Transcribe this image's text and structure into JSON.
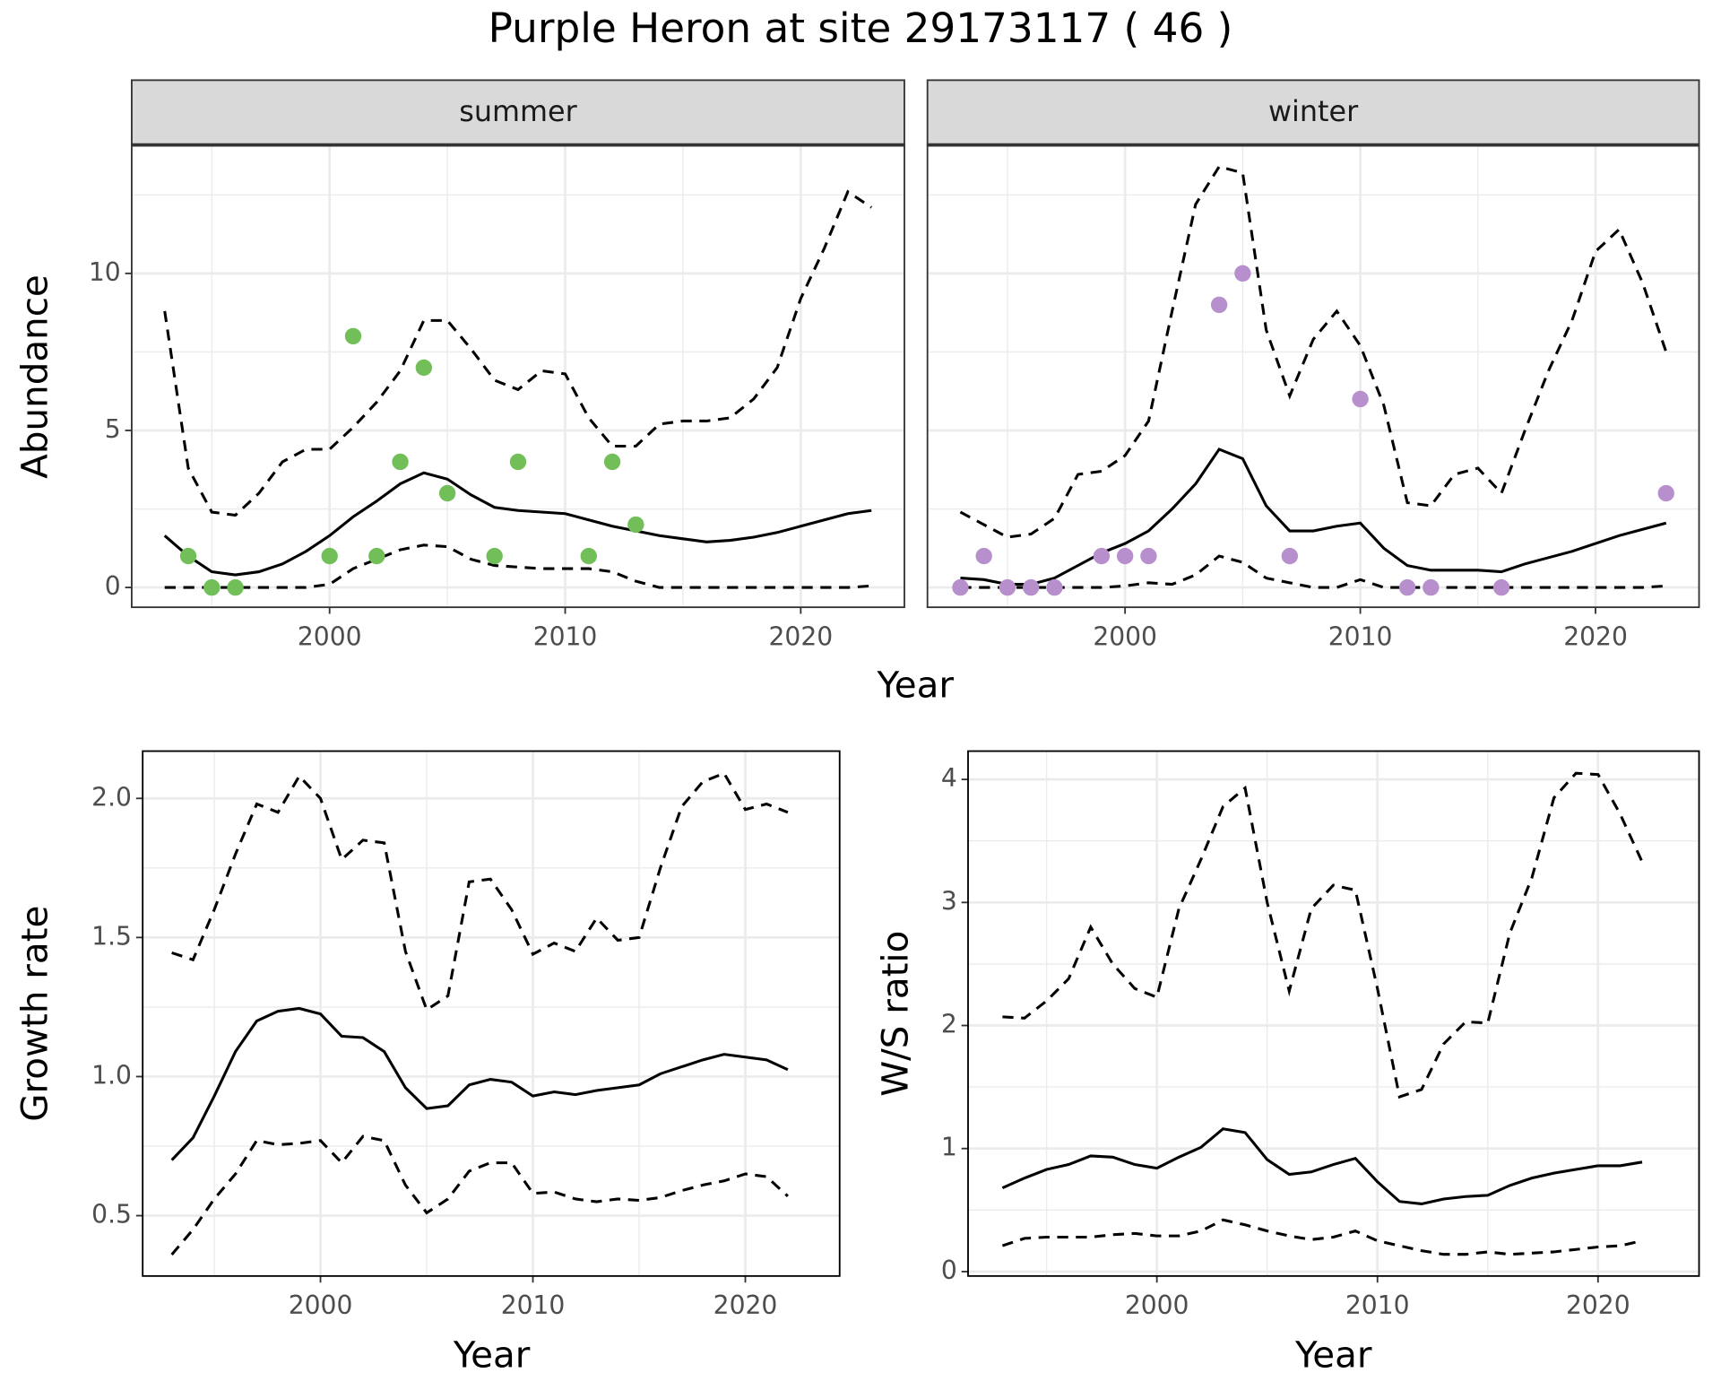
{
  "title": "Purple Heron at site 29173117 ( 46 )",
  "chart_data": [
    {
      "type": "line",
      "subtitle": "summer",
      "x_label": "Year",
      "y_label": "Abundance",
      "xlim": [
        1991.6,
        2024.4
      ],
      "ylim": [
        -0.63,
        14.09
      ],
      "xticks": [
        2000,
        2010,
        2020
      ],
      "yticks": [
        0,
        5,
        10
      ],
      "x_minor_ticks": [
        1995,
        2005,
        2015
      ],
      "y_minor_ticks": [
        2.5,
        7.5,
        12.5
      ],
      "grid": true,
      "show_ytick_labels": true,
      "x": [
        1993,
        1994,
        1995,
        1996,
        1997,
        1998,
        1999,
        2000,
        2001,
        2002,
        2003,
        2004,
        2005,
        2006,
        2007,
        2008,
        2009,
        2010,
        2011,
        2012,
        2013,
        2014,
        2015,
        2016,
        2017,
        2018,
        2019,
        2020,
        2021,
        2022,
        2023
      ],
      "series": [
        {
          "color": "#000000",
          "linestyle": "solid",
          "values": [
            1.65,
            1.0,
            0.5,
            0.4,
            0.5,
            0.75,
            1.15,
            1.65,
            2.25,
            2.75,
            3.3,
            3.65,
            3.45,
            2.95,
            2.55,
            2.45,
            2.4,
            2.35,
            2.15,
            1.95,
            1.8,
            1.65,
            1.55,
            1.45,
            1.5,
            1.6,
            1.75,
            1.95,
            2.15,
            2.35,
            2.45
          ]
        },
        {
          "color": "#000000",
          "linestyle": "dashed",
          "values": [
            8.8,
            3.8,
            2.4,
            2.3,
            3.0,
            4.0,
            4.4,
            4.4,
            5.1,
            5.9,
            6.9,
            8.5,
            8.5,
            7.6,
            6.6,
            6.3,
            6.9,
            6.8,
            5.4,
            4.5,
            4.5,
            5.2,
            5.3,
            5.3,
            5.4,
            6.0,
            7.0,
            9.2,
            10.8,
            12.6,
            12.1
          ]
        },
        {
          "color": "#000000",
          "linestyle": "dashed",
          "values": [
            0,
            0,
            0,
            0,
            0,
            0,
            0,
            0.1,
            0.6,
            0.9,
            1.2,
            1.35,
            1.3,
            0.9,
            0.7,
            0.65,
            0.6,
            0.6,
            0.6,
            0.5,
            0.2,
            0,
            0,
            0,
            0,
            0,
            0,
            0,
            0,
            0,
            0.05
          ]
        }
      ],
      "points": {
        "color": "#72bf5a",
        "x": [
          1994,
          1995,
          1996,
          2000,
          2001,
          2002,
          2003,
          2004,
          2005,
          2007,
          2008,
          2011,
          2012,
          2013
        ],
        "values": [
          1,
          0,
          0,
          1,
          8,
          1,
          4,
          7,
          3,
          1,
          4,
          1,
          4,
          2
        ]
      }
    },
    {
      "type": "line",
      "subtitle": "winter",
      "xlim": [
        1991.6,
        2024.4
      ],
      "ylim": [
        -0.63,
        14.09
      ],
      "xticks": [
        2000,
        2010,
        2020
      ],
      "yticks": [
        0,
        5,
        10
      ],
      "x_minor_ticks": [
        1995,
        2005,
        2015
      ],
      "y_minor_ticks": [
        2.5,
        7.5,
        12.5
      ],
      "grid": true,
      "show_ytick_labels": false,
      "x": [
        1993,
        1994,
        1995,
        1996,
        1997,
        1998,
        1999,
        2000,
        2001,
        2002,
        2003,
        2004,
        2005,
        2006,
        2007,
        2008,
        2009,
        2010,
        2011,
        2012,
        2013,
        2014,
        2015,
        2016,
        2017,
        2018,
        2019,
        2020,
        2021,
        2022,
        2023
      ],
      "series": [
        {
          "color": "#000000",
          "linestyle": "solid",
          "values": [
            0.3,
            0.25,
            0.1,
            0.1,
            0.3,
            0.7,
            1.1,
            1.4,
            1.8,
            2.5,
            3.3,
            4.4,
            4.1,
            2.6,
            1.8,
            1.8,
            1.95,
            2.05,
            1.25,
            0.7,
            0.55,
            0.55,
            0.55,
            0.5,
            0.75,
            0.95,
            1.15,
            1.4,
            1.65,
            1.85,
            2.05
          ]
        },
        {
          "color": "#000000",
          "linestyle": "dashed",
          "values": [
            2.4,
            2.0,
            1.6,
            1.7,
            2.2,
            3.6,
            3.7,
            4.2,
            5.3,
            8.8,
            12.2,
            13.4,
            13.2,
            8.2,
            6.1,
            7.9,
            8.8,
            7.7,
            5.8,
            2.7,
            2.6,
            3.6,
            3.8,
            3.0,
            5.0,
            6.9,
            8.5,
            10.7,
            11.4,
            9.7,
            7.5
          ]
        },
        {
          "color": "#000000",
          "linestyle": "dashed",
          "values": [
            0,
            0,
            0,
            0,
            0,
            0,
            0,
            0.05,
            0.15,
            0.1,
            0.4,
            1.0,
            0.8,
            0.3,
            0.15,
            0,
            0,
            0.25,
            0,
            0,
            0,
            0,
            0,
            0,
            0,
            0,
            0,
            0,
            0,
            0,
            0.05
          ]
        }
      ],
      "points": {
        "color": "#b68fcc",
        "x": [
          1993,
          1994,
          1995,
          1996,
          1997,
          1999,
          2000,
          2001,
          2004,
          2005,
          2007,
          2010,
          2012,
          2013,
          2016,
          2023
        ],
        "values": [
          0,
          1,
          0,
          0,
          0,
          1,
          1,
          1,
          9,
          10,
          1,
          6,
          0,
          0,
          0,
          3
        ]
      }
    },
    {
      "type": "line",
      "x_label": "Year",
      "y_label": "Growth rate",
      "xlim": [
        1991.63,
        2024.44
      ],
      "ylim": [
        0.283,
        2.17
      ],
      "xticks": [
        2000,
        2010,
        2020
      ],
      "yticks": [
        0.5,
        {
          "value": 1,
          "label": "1.0"
        },
        1.5,
        {
          "value": 2,
          "label": "2.0"
        }
      ],
      "x_minor_ticks": [
        1995,
        2005,
        2015
      ],
      "y_minor_ticks": [
        0.75,
        1.25,
        1.75
      ],
      "grid": true,
      "show_ytick_labels": true,
      "x": [
        1993,
        1994,
        1995,
        1996,
        1997,
        1998,
        1999,
        2000,
        2001,
        2002,
        2003,
        2004,
        2005,
        2006,
        2007,
        2008,
        2009,
        2010,
        2011,
        2012,
        2013,
        2014,
        2015,
        2016,
        2017,
        2018,
        2019,
        2020,
        2021,
        2022
      ],
      "series": [
        {
          "color": "#000000",
          "linestyle": "solid",
          "values": [
            0.7,
            0.78,
            0.93,
            1.09,
            1.2,
            1.235,
            1.245,
            1.225,
            1.145,
            1.14,
            1.09,
            0.96,
            0.885,
            0.895,
            0.97,
            0.99,
            0.98,
            0.93,
            0.945,
            0.935,
            0.95,
            0.96,
            0.97,
            1.01,
            1.035,
            1.06,
            1.08,
            1.07,
            1.06,
            1.025
          ]
        },
        {
          "color": "#000000",
          "linestyle": "dashed",
          "values": [
            1.445,
            1.42,
            1.6,
            1.8,
            1.98,
            1.95,
            2.08,
            2.0,
            1.78,
            1.85,
            1.84,
            1.45,
            1.24,
            1.29,
            1.7,
            1.71,
            1.6,
            1.44,
            1.48,
            1.45,
            1.57,
            1.49,
            1.5,
            1.75,
            1.97,
            2.06,
            2.09,
            1.96,
            1.98,
            1.95
          ]
        },
        {
          "color": "#000000",
          "linestyle": "dashed",
          "values": [
            0.36,
            0.45,
            0.56,
            0.65,
            0.77,
            0.755,
            0.76,
            0.77,
            0.69,
            0.785,
            0.77,
            0.61,
            0.51,
            0.56,
            0.66,
            0.69,
            0.69,
            0.58,
            0.585,
            0.56,
            0.55,
            0.56,
            0.555,
            0.565,
            0.59,
            0.61,
            0.625,
            0.65,
            0.64,
            0.57
          ]
        }
      ]
    },
    {
      "type": "line",
      "x_label": "Year",
      "y_label": "W/S ratio",
      "xlim": [
        1991.44,
        2024.58
      ],
      "ylim": [
        -0.036,
        4.23
      ],
      "xticks": [
        2000,
        2010,
        2020
      ],
      "yticks": [
        0,
        1,
        2,
        3,
        4
      ],
      "x_minor_ticks": [
        1995,
        2005,
        2015
      ],
      "y_minor_ticks": [
        0.5,
        1.5,
        2.5,
        3.5
      ],
      "grid": true,
      "show_ytick_labels": true,
      "x": [
        1993,
        1994,
        1995,
        1996,
        1997,
        1998,
        1999,
        2000,
        2001,
        2002,
        2003,
        2004,
        2005,
        2006,
        2007,
        2008,
        2009,
        2010,
        2011,
        2012,
        2013,
        2014,
        2015,
        2016,
        2017,
        2018,
        2019,
        2020,
        2021,
        2022
      ],
      "series": [
        {
          "color": "#000000",
          "linestyle": "solid",
          "values": [
            0.68,
            0.76,
            0.83,
            0.87,
            0.94,
            0.93,
            0.87,
            0.84,
            0.93,
            1.01,
            1.16,
            1.13,
            0.91,
            0.79,
            0.81,
            0.87,
            0.92,
            0.73,
            0.57,
            0.55,
            0.59,
            0.61,
            0.62,
            0.7,
            0.76,
            0.8,
            0.83,
            0.86,
            0.86,
            0.89
          ]
        },
        {
          "color": "#000000",
          "linestyle": "dashed",
          "values": [
            2.07,
            2.06,
            2.2,
            2.38,
            2.8,
            2.5,
            2.3,
            2.23,
            2.95,
            3.35,
            3.78,
            3.93,
            3.0,
            2.28,
            2.95,
            3.14,
            3.1,
            2.3,
            1.42,
            1.48,
            1.85,
            2.03,
            2.02,
            2.75,
            3.2,
            3.85,
            4.05,
            4.04,
            3.72,
            3.33
          ]
        },
        {
          "color": "#000000",
          "linestyle": "dashed",
          "values": [
            0.21,
            0.27,
            0.28,
            0.28,
            0.28,
            0.3,
            0.31,
            0.29,
            0.29,
            0.33,
            0.42,
            0.38,
            0.33,
            0.29,
            0.26,
            0.28,
            0.33,
            0.25,
            0.21,
            0.17,
            0.14,
            0.14,
            0.16,
            0.14,
            0.15,
            0.16,
            0.18,
            0.2,
            0.21,
            0.25
          ]
        }
      ]
    }
  ]
}
